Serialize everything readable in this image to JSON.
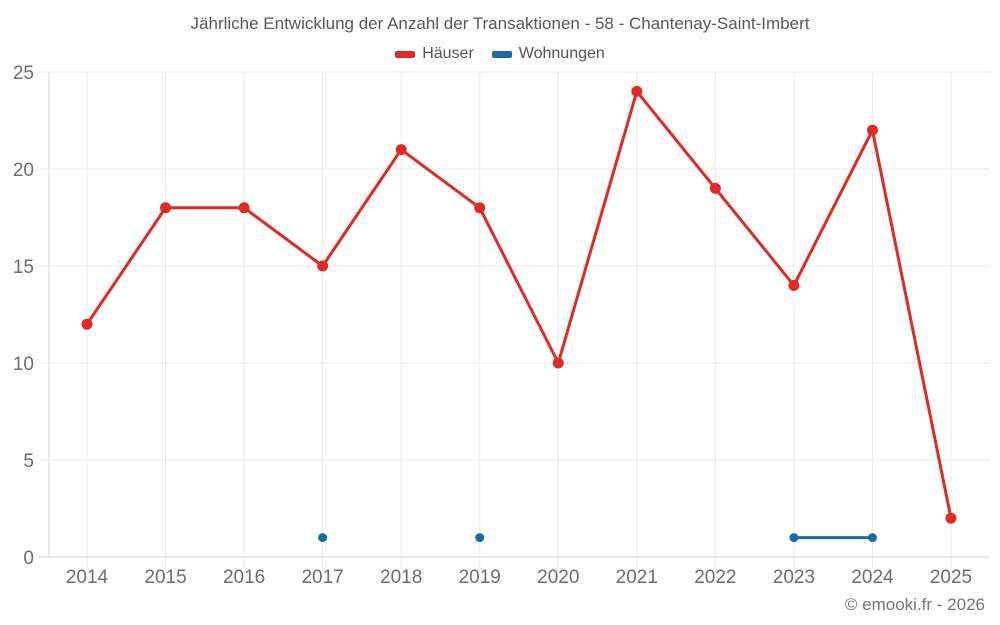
{
  "title": "Jährliche Entwicklung der Anzahl der Transaktionen - 58 - Chantenay-Saint-Imbert",
  "legend": {
    "items": [
      {
        "label": "Häuser",
        "color": "#e12a24"
      },
      {
        "label": "Wohnungen",
        "color": "#1b6ca5"
      }
    ]
  },
  "footer": "© emooki.fr - 2026",
  "chart_data": {
    "type": "line",
    "title": "Jährliche Entwicklung der Anzahl der Transaktionen - 58 - Chantenay-Saint-Imbert",
    "x": [
      "2014",
      "2015",
      "2016",
      "2017",
      "2018",
      "2019",
      "2020",
      "2021",
      "2022",
      "2023",
      "2024",
      "2025"
    ],
    "series": [
      {
        "name": "Häuser",
        "color": "#e12a24",
        "values": [
          12,
          18,
          18,
          15,
          21,
          18,
          10,
          24,
          19,
          14,
          22,
          2
        ]
      },
      {
        "name": "Wohnungen",
        "color": "#1b6ca5",
        "values": [
          null,
          null,
          null,
          1,
          null,
          1,
          null,
          null,
          null,
          1,
          1,
          null
        ]
      }
    ],
    "xlabel": "",
    "ylabel": "",
    "ylim": [
      0,
      25
    ],
    "yticks": [
      0,
      5,
      10,
      15,
      20,
      25
    ],
    "grid": true,
    "legend_position": "top"
  },
  "colors": {
    "background": "#ffffff",
    "grid": "#ebebeb",
    "axis": "#d6d6d6",
    "tick_label": "#6e6e6e",
    "title": "#58585a",
    "footer": "#757575"
  }
}
